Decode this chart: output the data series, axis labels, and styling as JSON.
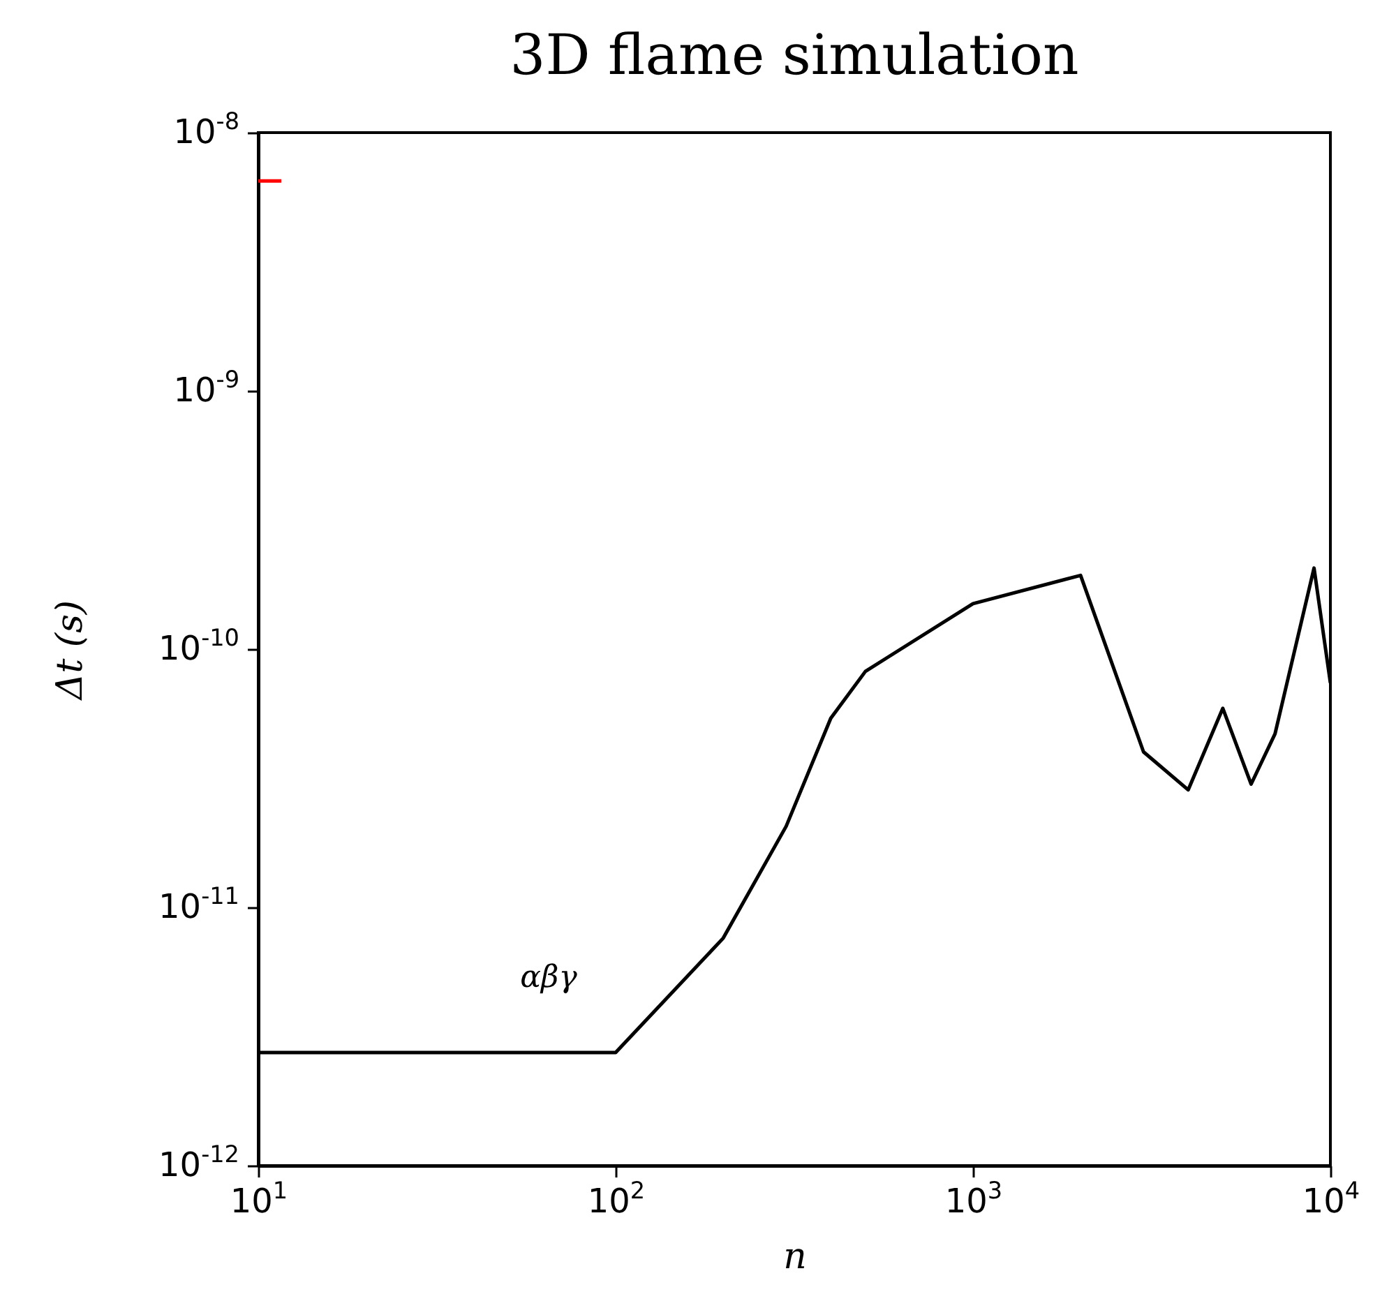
{
  "chart_data": {
    "type": "line",
    "title": "3D flame simulation",
    "xlabel": "n",
    "ylabel": "Δt (s)",
    "log": "xy",
    "grid": false,
    "annotations": [
      "αβγ"
    ],
    "xlim": [
      10,
      10000
    ],
    "xticks": [
      {
        "value": 10,
        "label": "10$^{1}$"
      },
      {
        "value": 100,
        "label": "10$^{2}$"
      },
      {
        "value": 1000,
        "label": "10$^{3}$"
      },
      {
        "value": 10000,
        "label": "10$^{4}$"
      }
    ],
    "ylim": [
      1e-12,
      1e-08
    ],
    "yticks": [
      {
        "value": 1e-12,
        "label": "10$^{-12}$"
      },
      {
        "value": 1e-11,
        "label": "10$^{-11}$"
      },
      {
        "value": 1e-10,
        "label": "10$^{-10}$"
      },
      {
        "value": 1e-09,
        "label": "10$^{-9}$"
      },
      {
        "value": 1e-08,
        "label": "10$^{-8}$"
      }
    ],
    "series": [
      {
        "color": "#000000",
        "x": [
          10,
          100,
          200,
          300,
          400,
          500,
          1000,
          2000,
          3000,
          4000,
          5000,
          6000,
          7000,
          9000,
          10000
        ],
        "values": [
          2.74e-12,
          2.74e-12,
          7.6e-12,
          2.06e-11,
          5.4e-11,
          8.2e-11,
          1.5e-10,
          1.93e-10,
          4e-11,
          2.85e-11,
          5.9e-11,
          3e-11,
          4.7e-11,
          2.06e-10,
          7.4e-11
        ]
      },
      {
        "color": "#ff0000",
        "x": [
          10,
          11.6
        ],
        "values": [
          6.5e-09,
          6.5e-09
        ]
      }
    ]
  }
}
